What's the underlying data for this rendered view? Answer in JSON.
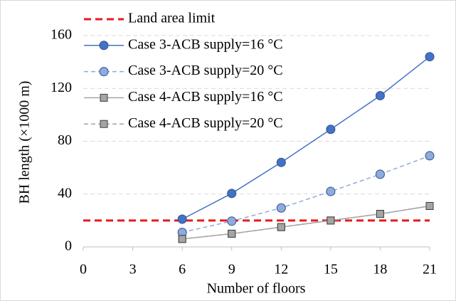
{
  "chart_data": {
    "type": "line",
    "xlabel": "Number of floors",
    "ylabel": "BH length (×1000 m)",
    "xlim": [
      0,
      21
    ],
    "xticks": [
      0,
      3,
      6,
      9,
      12,
      15,
      18,
      21
    ],
    "ylim": [
      0,
      160
    ],
    "yticks": [
      0,
      40,
      80,
      120,
      160
    ],
    "grid": true,
    "legend": "upper-left",
    "series": [
      {
        "name": "Land area limit",
        "color": "#e8191c",
        "dash": true,
        "marker": "none",
        "x": [
          0,
          21
        ],
        "values": [
          20,
          20
        ]
      },
      {
        "name": "Case 3-ACB supply=16 °C",
        "color": "#4472c4",
        "dash": false,
        "marker": "circle",
        "x": [
          6,
          9,
          12,
          15,
          18,
          21
        ],
        "values": [
          21,
          40.5,
          64,
          89,
          114.5,
          144
        ]
      },
      {
        "name": "Case 3-ACB supply=20 °C",
        "color": "#8faadc",
        "dash": true,
        "marker": "circle",
        "x": [
          6,
          9,
          12,
          15,
          18,
          21
        ],
        "values": [
          11,
          19.5,
          29.5,
          42,
          55,
          69
        ]
      },
      {
        "name": "Case 4-ACB supply=16 °C",
        "color": "#a5a5a5",
        "dash": false,
        "marker": "square",
        "x": [
          6,
          9,
          12,
          15,
          18,
          21
        ],
        "values": [
          6,
          10,
          15,
          20,
          25,
          31
        ]
      },
      {
        "name": "Case 4-ACB supply=20 °C",
        "color": "#a5a5a5",
        "dash": true,
        "marker": "square",
        "x": [
          6,
          9,
          12,
          15,
          18,
          21
        ],
        "values": [
          6,
          10,
          15,
          20,
          25,
          31
        ]
      }
    ]
  }
}
